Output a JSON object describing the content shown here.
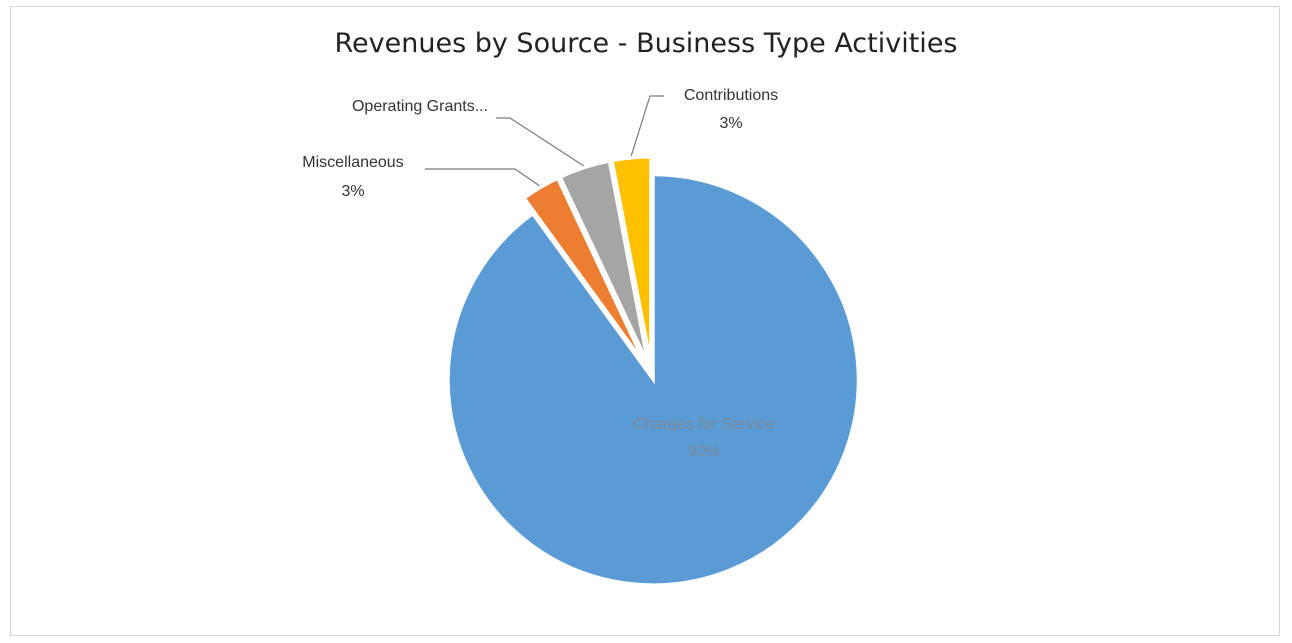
{
  "chart_data": {
    "type": "pie",
    "title": "Revenues by Source - Business Type Activities",
    "slices": [
      {
        "label": "Charges for Service",
        "value": 90,
        "display": "90%",
        "color": "#5b9bd5"
      },
      {
        "label": "Miscellaneous",
        "value": 3,
        "display": "3%",
        "color": "#ed7d31"
      },
      {
        "label": "Operating Grants...",
        "value": 4,
        "display": "",
        "color": "#a5a5a5"
      },
      {
        "label": "Contributions",
        "value": 3,
        "display": "3%",
        "color": "#ffc000"
      }
    ],
    "legend": "none",
    "exploded": true
  }
}
